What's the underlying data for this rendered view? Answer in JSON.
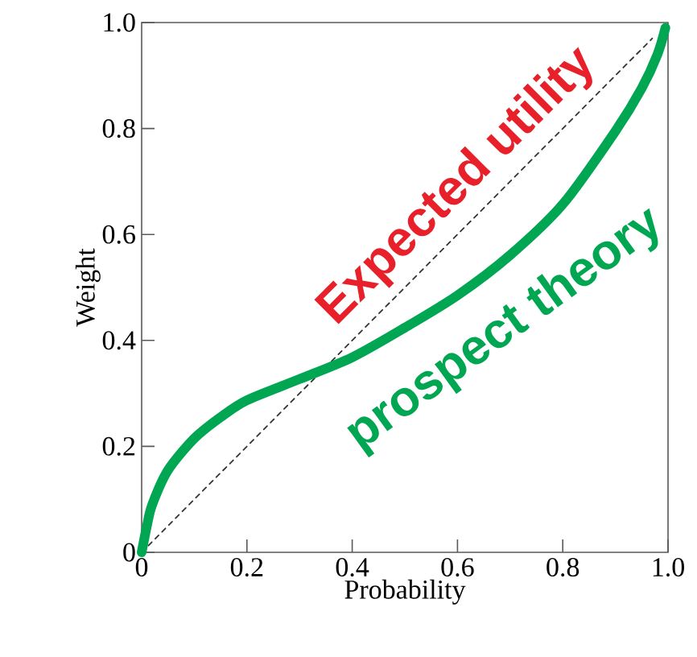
{
  "chart_data": {
    "type": "line",
    "xlabel": "Probability",
    "ylabel": "Weight",
    "xlim": [
      0,
      1
    ],
    "ylim": [
      0,
      1
    ],
    "xticks": [
      0,
      0.2,
      0.4,
      0.6,
      0.8,
      {
        "value": 1,
        "label": "1.0"
      }
    ],
    "yticks": [
      0,
      0.2,
      0.4,
      0.6,
      0.8,
      {
        "value": 1,
        "label": "1.0"
      }
    ],
    "series": [
      {
        "color": "#333333",
        "line_style": "dashed",
        "x": [
          0,
          0.97
        ],
        "values": [
          0,
          0.97
        ]
      },
      {
        "color": "#00a651",
        "line_style": "solid",
        "x": [
          0,
          0.01,
          0.02,
          0.05,
          0.1,
          0.15,
          0.2,
          0.3,
          0.4,
          0.5,
          0.6,
          0.7,
          0.8,
          0.9,
          0.95,
          0.98,
          0.995
        ],
        "values": [
          0,
          0.05,
          0.09,
          0.155,
          0.215,
          0.255,
          0.287,
          0.327,
          0.368,
          0.424,
          0.485,
          0.561,
          0.657,
          0.795,
          0.876,
          0.94,
          0.99
        ]
      }
    ],
    "annotations": [
      "Expected utility",
      "prospect theory"
    ]
  }
}
